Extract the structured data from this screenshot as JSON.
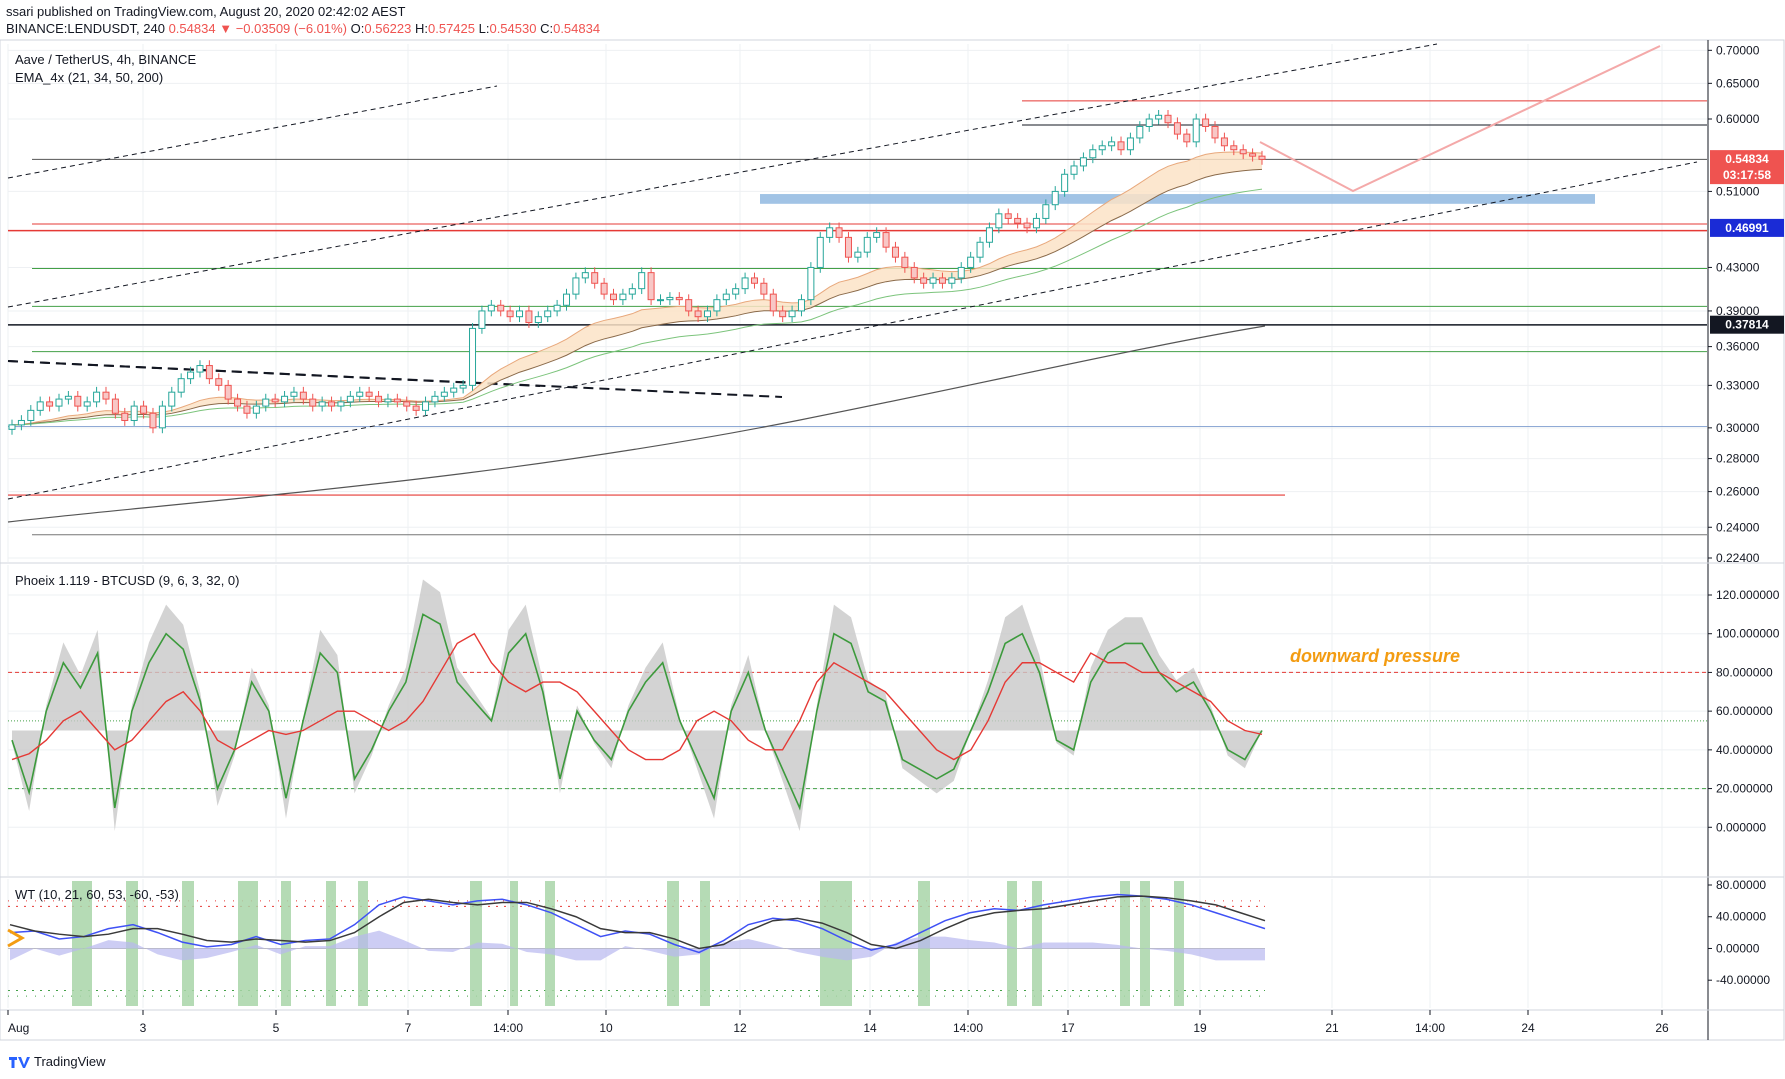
{
  "header": {
    "publish_line": "ssari published on TradingView.com, August 20, 2020 02:42:02 AEST",
    "symbol_line_prefix": "BINANCE:LENDUSDT, 240",
    "last": "0.54834",
    "change": "−0.03509 (−6.01%)",
    "o_label": "O:",
    "o": "0.56223",
    "h_label": "H:",
    "h": "0.57425",
    "l_label": "L:",
    "l": "0.54530",
    "c_label": "C:",
    "c": "0.54834"
  },
  "legend": {
    "symbol": "Aave / TetherUS, 4h, BINANCE",
    "ema": "EMA_4x (21, 34, 50, 200)",
    "phoeix": "Phoeix 1.119 - BTCUSD (9, 6, 3, 32, 0)",
    "wt": "WT (10, 21, 60, 53, -60, -53)"
  },
  "annotation": "downward pressure",
  "brand": "TradingView",
  "colors": {
    "up": "#26a69a",
    "down": "#ef5350",
    "red_line": "#e53935",
    "green_line": "#43a047",
    "blue_zone": "#90b8e0",
    "grid": "#eef0f3",
    "annot": "#f39c12",
    "wt_blue": "#3f51f5",
    "wt_black": "#3a3a3a"
  },
  "chart_data": [
    {
      "type": "line",
      "title": "Aave / TetherUS, 4h, BINANCE",
      "y_ticks": [
        "0.70000",
        "0.65000",
        "0.60000",
        "0.51000",
        "0.43000",
        "0.39000",
        "0.36000",
        "0.33000",
        "0.30000",
        "0.28000",
        "0.26000",
        "0.24000",
        "0.22400"
      ],
      "x_ticks": [
        "Aug",
        "3",
        "5",
        "7",
        "14:00",
        "10",
        "12",
        "14",
        "14:00",
        "17",
        "19",
        "21",
        "14:00",
        "24",
        "26"
      ],
      "price_tags": [
        {
          "value": "0.54834",
          "sub": "03:17:58",
          "color": "#ef5350"
        },
        {
          "value": "0.46991",
          "color": "#1a2bd6"
        },
        {
          "value": "0.37814",
          "color": "#131722"
        }
      ],
      "close_series": [
        0.302,
        0.305,
        0.312,
        0.318,
        0.315,
        0.32,
        0.322,
        0.315,
        0.318,
        0.325,
        0.32,
        0.31,
        0.305,
        0.315,
        0.31,
        0.3,
        0.315,
        0.325,
        0.335,
        0.34,
        0.345,
        0.335,
        0.33,
        0.32,
        0.315,
        0.31,
        0.315,
        0.32,
        0.318,
        0.322,
        0.325,
        0.32,
        0.315,
        0.318,
        0.315,
        0.318,
        0.322,
        0.325,
        0.322,
        0.318,
        0.32,
        0.318,
        0.315,
        0.312,
        0.318,
        0.322,
        0.325,
        0.328,
        0.33,
        0.375,
        0.39,
        0.395,
        0.39,
        0.385,
        0.39,
        0.38,
        0.385,
        0.39,
        0.395,
        0.405,
        0.42,
        0.425,
        0.415,
        0.405,
        0.4,
        0.405,
        0.41,
        0.425,
        0.4,
        0.4,
        0.402,
        0.4,
        0.39,
        0.385,
        0.39,
        0.4,
        0.405,
        0.41,
        0.42,
        0.415,
        0.405,
        0.39,
        0.385,
        0.39,
        0.4,
        0.43,
        0.46,
        0.47,
        0.46,
        0.44,
        0.445,
        0.46,
        0.465,
        0.45,
        0.44,
        0.43,
        0.42,
        0.415,
        0.42,
        0.415,
        0.42,
        0.43,
        0.44,
        0.455,
        0.47,
        0.485,
        0.48,
        0.475,
        0.47,
        0.48,
        0.495,
        0.51,
        0.53,
        0.54,
        0.55,
        0.56,
        0.565,
        0.57,
        0.56,
        0.575,
        0.59,
        0.6,
        0.605,
        0.595,
        0.58,
        0.57,
        0.6,
        0.59,
        0.575,
        0.565,
        0.56,
        0.555,
        0.552,
        0.548
      ]
    },
    {
      "type": "line",
      "title": "Phoeix 1.119 - BTCUSD (9, 6, 3, 32, 0)",
      "y_ticks": [
        "120.000000",
        "100.000000",
        "80.000000",
        "60.000000",
        "40.000000",
        "20.000000",
        "0.000000"
      ],
      "green": [
        45,
        18,
        60,
        85,
        72,
        90,
        10,
        60,
        85,
        100,
        92,
        65,
        20,
        40,
        75,
        60,
        15,
        55,
        90,
        80,
        25,
        40,
        60,
        75,
        110,
        105,
        75,
        65,
        55,
        90,
        100,
        70,
        25,
        60,
        45,
        35,
        60,
        75,
        85,
        55,
        35,
        15,
        60,
        80,
        50,
        30,
        10,
        60,
        100,
        95,
        70,
        65,
        35,
        30,
        25,
        30,
        50,
        70,
        95,
        100,
        80,
        45,
        40,
        75,
        90,
        95,
        95,
        80,
        70,
        75,
        60,
        40,
        35,
        50
      ],
      "red": [
        35,
        38,
        45,
        55,
        60,
        50,
        40,
        45,
        55,
        65,
        70,
        60,
        45,
        40,
        45,
        50,
        48,
        50,
        55,
        60,
        60,
        55,
        50,
        55,
        65,
        80,
        95,
        100,
        85,
        75,
        70,
        75,
        75,
        70,
        60,
        50,
        40,
        35,
        35,
        40,
        55,
        60,
        55,
        45,
        40,
        40,
        55,
        75,
        85,
        80,
        75,
        70,
        60,
        50,
        40,
        35,
        40,
        55,
        75,
        85,
        85,
        80,
        75,
        90,
        85,
        85,
        80,
        80,
        75,
        70,
        65,
        55,
        50,
        48
      ]
    },
    {
      "type": "line",
      "title": "WT (10, 21, 60, 53, -60, -53)",
      "y_ticks": [
        "80.00000",
        "40.00000",
        "0.00000",
        "-40.00000"
      ]
    }
  ]
}
